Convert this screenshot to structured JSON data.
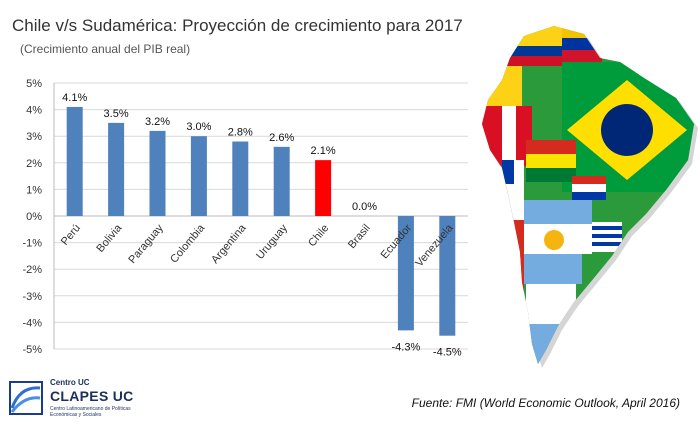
{
  "title": "Chile v/s Sudamérica: Proyección de crecimiento para 2017",
  "subtitle": "(Crecimiento anual del PIB real)",
  "source": "Fuente: FMI (World Economic Outlook, April 2016)",
  "logo": {
    "top": "Centro UC",
    "main": "CLAPES UC",
    "desc": "Centro Latinoamericano de Políticas Económicas y Sociales"
  },
  "colors": {
    "bar": "#4f81bd",
    "highlight": "#ff0000"
  },
  "chart_data": {
    "type": "bar",
    "categories": [
      "Perú",
      "Bolivia",
      "Paraguay",
      "Colombia",
      "Argentina",
      "Uruguay",
      "Chile",
      "Brasil",
      "Ecuador",
      "Venezuela"
    ],
    "values": [
      4.1,
      3.5,
      3.2,
      3.0,
      2.8,
      2.6,
      2.1,
      0.0,
      -4.3,
      -4.5
    ],
    "data_labels": [
      "4.1%",
      "3.5%",
      "3.2%",
      "3.0%",
      "2.8%",
      "2.6%",
      "2.1%",
      "0.0%",
      "-4.3%",
      "-4.5%"
    ],
    "highlight": "Chile",
    "ylim": [
      -5,
      5
    ],
    "yticks": [
      "5%",
      "4%",
      "3%",
      "2%",
      "1%",
      "0%",
      "-1%",
      "-2%",
      "-3%",
      "-4%",
      "-5%"
    ],
    "grid": true,
    "title": "Chile v/s Sudamérica: Proyección de crecimiento para 2017",
    "subtitle": "(Crecimiento anual del PIB real)"
  }
}
